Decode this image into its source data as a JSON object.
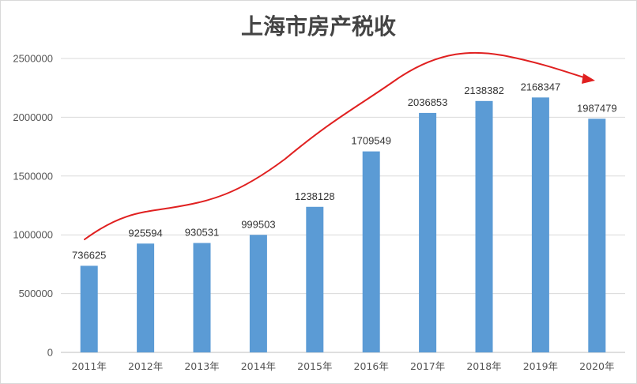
{
  "chart_data": {
    "type": "bar",
    "title": "上海市房产税收",
    "xlabel": "",
    "ylabel": "",
    "categories": [
      "2011年",
      "2012年",
      "2013年",
      "2014年",
      "2015年",
      "2016年",
      "2017年",
      "2018年",
      "2019年",
      "2020年"
    ],
    "values": [
      736625,
      925594,
      930531,
      999503,
      1238128,
      1709549,
      2036853,
      2138382,
      2168347,
      1987479
    ],
    "ylim": [
      0,
      2500000
    ],
    "yticks": [
      0,
      500000,
      1000000,
      1500000,
      2000000,
      2500000
    ],
    "grid": true,
    "legend": "none",
    "data_labels": true,
    "annotations": [
      {
        "type": "trend-arrow",
        "description": "red hand-drawn curved arrow following the bars' rise and ending with a downturn"
      }
    ],
    "colors": {
      "bar": "#5b9bd5",
      "arrow": "#e02020",
      "grid": "#d9d9d9",
      "axis_text": "#555555"
    }
  }
}
